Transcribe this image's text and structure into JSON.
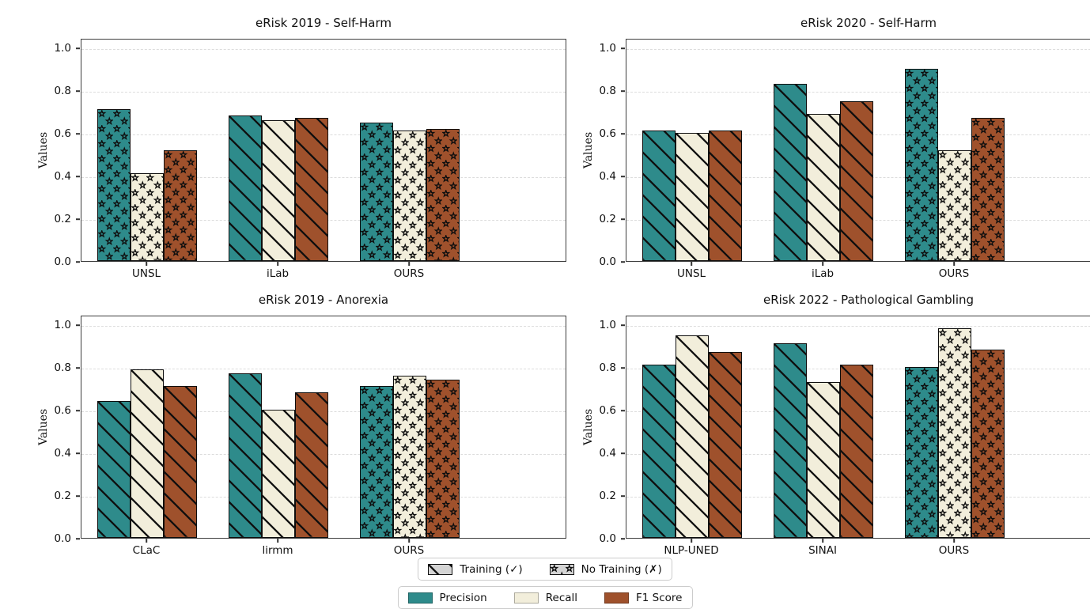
{
  "chart_data": [
    {
      "type": "bar",
      "title": "eRisk 2019 - Self-Harm",
      "ylabel": "Values",
      "ylim": [
        0,
        1.044
      ],
      "yticks": [
        0.0,
        0.2,
        0.4,
        0.6,
        0.8,
        1.0
      ],
      "grid": "dashed-horizontal",
      "categories": [
        "UNSL",
        "iLab",
        "OURS"
      ],
      "group_hatch": [
        "star",
        "diag",
        "star"
      ],
      "series": [
        {
          "name": "Precision",
          "values": [
            0.71,
            0.68,
            0.65
          ]
        },
        {
          "name": "Recall",
          "values": [
            0.41,
            0.66,
            0.61
          ]
        },
        {
          "name": "F1 Score",
          "values": [
            0.52,
            0.67,
            0.62
          ]
        }
      ]
    },
    {
      "type": "bar",
      "title": "eRisk 2020 - Self-Harm",
      "ylabel": "Values",
      "ylim": [
        0,
        1.044
      ],
      "yticks": [
        0.0,
        0.2,
        0.4,
        0.6,
        0.8,
        1.0
      ],
      "grid": "dashed-horizontal",
      "categories": [
        "UNSL",
        "iLab",
        "OURS"
      ],
      "group_hatch": [
        "diag",
        "diag",
        "star"
      ],
      "series": [
        {
          "name": "Precision",
          "values": [
            0.61,
            0.83,
            0.9
          ]
        },
        {
          "name": "Recall",
          "values": [
            0.6,
            0.69,
            0.52
          ]
        },
        {
          "name": "F1 Score",
          "values": [
            0.61,
            0.75,
            0.67
          ]
        }
      ]
    },
    {
      "type": "bar",
      "title": "eRisk 2019 - Anorexia",
      "ylabel": "Values",
      "ylim": [
        0,
        1.044
      ],
      "yticks": [
        0.0,
        0.2,
        0.4,
        0.6,
        0.8,
        1.0
      ],
      "grid": "dashed-horizontal",
      "categories": [
        "CLaC",
        "lirmm",
        "OURS"
      ],
      "group_hatch": [
        "diag",
        "diag",
        "star"
      ],
      "series": [
        {
          "name": "Precision",
          "values": [
            0.64,
            0.77,
            0.71
          ]
        },
        {
          "name": "Recall",
          "values": [
            0.79,
            0.6,
            0.76
          ]
        },
        {
          "name": "F1 Score",
          "values": [
            0.71,
            0.68,
            0.74
          ]
        }
      ]
    },
    {
      "type": "bar",
      "title": "eRisk 2022 - Pathological Gambling",
      "ylabel": "Values",
      "ylim": [
        0,
        1.044
      ],
      "yticks": [
        0.0,
        0.2,
        0.4,
        0.6,
        0.8,
        1.0
      ],
      "grid": "dashed-horizontal",
      "categories": [
        "NLP-UNED",
        "SINAI",
        "OURS"
      ],
      "group_hatch": [
        "diag",
        "diag",
        "star"
      ],
      "series": [
        {
          "name": "Precision",
          "values": [
            0.81,
            0.91,
            0.8
          ]
        },
        {
          "name": "Recall",
          "values": [
            0.95,
            0.73,
            0.98
          ]
        },
        {
          "name": "F1 Score",
          "values": [
            0.87,
            0.81,
            0.88
          ]
        }
      ]
    }
  ],
  "legend": {
    "hatch_items": [
      {
        "label": "Training (✓)",
        "hatch": "diag"
      },
      {
        "label": "No Training (✗)",
        "hatch": "star"
      }
    ],
    "series_items": [
      {
        "label": "Precision",
        "color": "#2E8B8B"
      },
      {
        "label": "Recall",
        "color": "#F2EEDB"
      },
      {
        "label": "F1 Score",
        "color": "#9F512C"
      }
    ],
    "hatch_swatch_bg": "#d4d4d4",
    "hatch_color": "#0e0e0e"
  }
}
